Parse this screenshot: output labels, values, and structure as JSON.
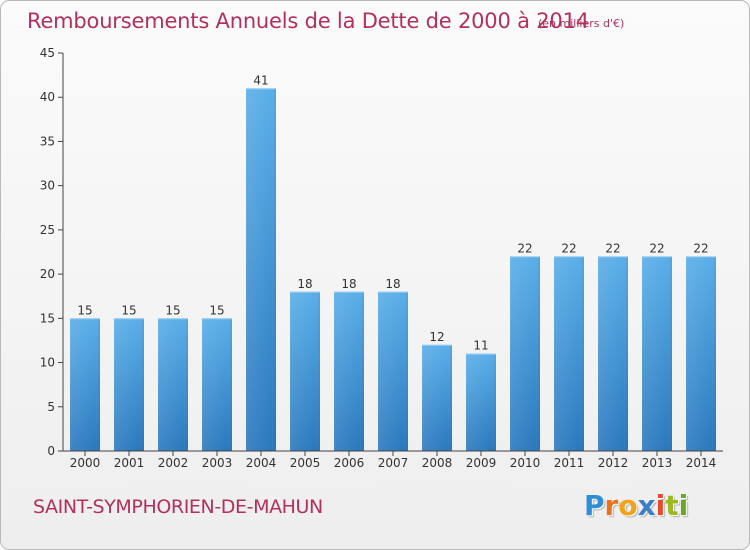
{
  "title": "Remboursements Annuels de la Dette de 2000 à 2014",
  "unit_note": "(en milliers d'€)",
  "commune": "SAINT-SYMPHORIEN-DE-MAHUN",
  "logo": {
    "letters": [
      "P",
      "r",
      "o",
      "x",
      "i",
      "t",
      "i"
    ],
    "colors": [
      "#2f8fd6",
      "#e8731c",
      "#f0a21a",
      "#3c7fc8",
      "#e64b2c",
      "#9bbb1d",
      "#6aa824"
    ]
  },
  "colors": {
    "bar_top": "#5aaee8",
    "bar_bottom": "#2a78bd",
    "title": "#b2305e",
    "axis": "#444444",
    "grid": "#cfcfcf"
  },
  "chart_data": {
    "type": "bar",
    "title": "Remboursements Annuels de la Dette de 2000 à 2014",
    "xlabel": "",
    "ylabel": "",
    "categories": [
      "2000",
      "2001",
      "2002",
      "2003",
      "2004",
      "2005",
      "2006",
      "2007",
      "2008",
      "2009",
      "2010",
      "2011",
      "2012",
      "2013",
      "2014"
    ],
    "values": [
      15,
      15,
      15,
      15,
      41,
      18,
      18,
      18,
      12,
      11,
      22,
      22,
      22,
      22,
      22
    ],
    "ylim": [
      0,
      45
    ],
    "yticks": [
      0,
      5,
      10,
      15,
      20,
      25,
      30,
      35,
      40,
      45
    ],
    "grid": false,
    "data_labels": true
  }
}
